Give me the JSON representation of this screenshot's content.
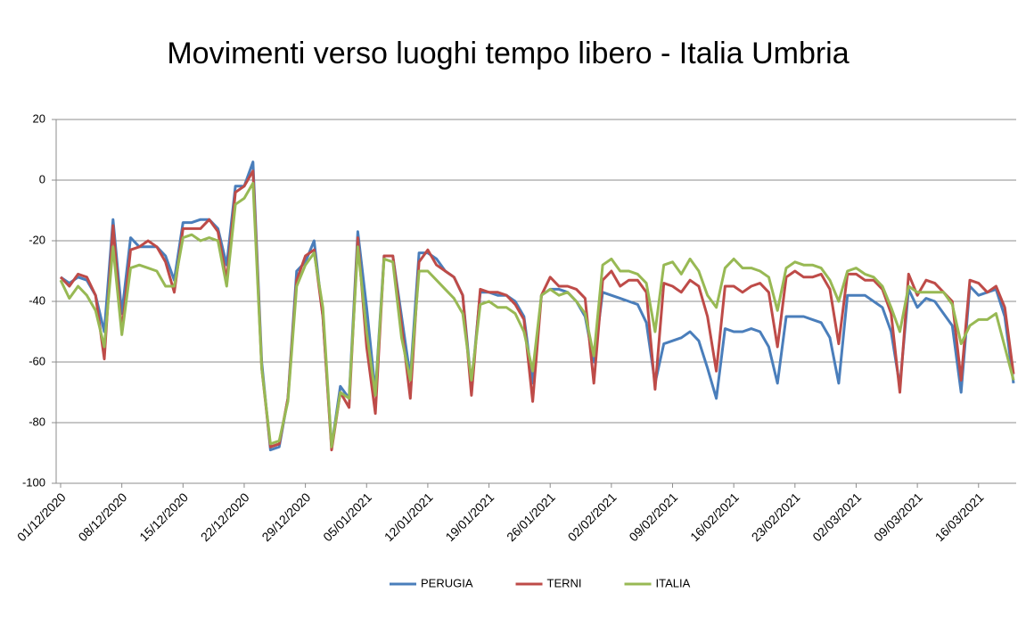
{
  "chart_data": {
    "type": "line",
    "title": "Movimenti verso luoghi tempo libero - Italia Umbria",
    "categories": [
      "01/12/2020",
      null,
      null,
      null,
      null,
      null,
      null,
      "08/12/2020",
      null,
      null,
      null,
      null,
      null,
      null,
      "15/12/2020",
      null,
      null,
      null,
      null,
      null,
      null,
      "22/12/2020",
      null,
      null,
      null,
      null,
      null,
      null,
      "29/12/2020",
      null,
      null,
      null,
      null,
      null,
      null,
      "05/01/2021",
      null,
      null,
      null,
      null,
      null,
      null,
      "12/01/2021",
      null,
      null,
      null,
      null,
      null,
      null,
      "19/01/2021",
      null,
      null,
      null,
      null,
      null,
      null,
      "26/01/2021",
      null,
      null,
      null,
      null,
      null,
      null,
      "02/02/2021",
      null,
      null,
      null,
      null,
      null,
      null,
      "09/02/2021",
      null,
      null,
      null,
      null,
      null,
      null,
      "16/02/2021",
      null,
      null,
      null,
      null,
      null,
      null,
      "23/02/2021",
      null,
      null,
      null,
      null,
      null,
      null,
      "02/03/2021",
      null,
      null,
      null,
      null,
      null,
      null,
      "09/03/2021",
      null,
      null,
      null,
      null,
      null,
      null,
      "16/03/2021",
      null,
      null,
      null,
      null
    ],
    "series": [
      {
        "name": "PERUGIA",
        "color": "#4a7ebb",
        "values": [
          -32,
          -34,
          -32,
          -33,
          -38,
          -50,
          -13,
          -44,
          -19,
          -22,
          -22,
          -22,
          -25,
          -33,
          -14,
          -14,
          -13,
          -13,
          -16,
          -28,
          -2,
          -2,
          6,
          -60,
          -89,
          -88,
          -72,
          -30,
          -27,
          -20,
          -45,
          -88,
          -68,
          -72,
          -17,
          -42,
          -70,
          -25,
          -25,
          -45,
          -65,
          -24,
          -24,
          -26,
          -30,
          -32,
          -38,
          -68,
          -37,
          -37,
          -38,
          -38,
          -40,
          -45,
          -67,
          -38,
          -36,
          -36,
          -37,
          -40,
          -45,
          -60,
          -37,
          -38,
          -39,
          -40,
          -41,
          -47,
          -67,
          -54,
          -53,
          -52,
          -50,
          -53,
          -62,
          -72,
          -49,
          -50,
          -50,
          -49,
          -50,
          -55,
          -67,
          -45,
          -45,
          -45,
          -46,
          -47,
          -52,
          -67,
          -38,
          -38,
          -38,
          -40,
          -42,
          -50,
          -68,
          -36,
          -42,
          -39,
          -40,
          -44,
          -48,
          -70,
          -35,
          -38,
          -37,
          -36,
          -45,
          -67
        ]
      },
      {
        "name": "TERNI",
        "color": "#be4b48",
        "values": [
          -32,
          -35,
          -31,
          -32,
          -38,
          -59,
          -15,
          -50,
          -23,
          -22,
          -20,
          -22,
          -27,
          -37,
          -16,
          -16,
          -16,
          -13,
          -17,
          -33,
          -4,
          -2,
          3,
          -62,
          -88,
          -87,
          -72,
          -33,
          -25,
          -23,
          -45,
          -89,
          -70,
          -75,
          -19,
          -55,
          -77,
          -25,
          -25,
          -48,
          -72,
          -27,
          -23,
          -28,
          -30,
          -32,
          -38,
          -71,
          -36,
          -37,
          -37,
          -38,
          -41,
          -46,
          -73,
          -38,
          -32,
          -35,
          -35,
          -36,
          -39,
          -67,
          -33,
          -30,
          -35,
          -33,
          -33,
          -37,
          -69,
          -34,
          -35,
          -37,
          -33,
          -35,
          -45,
          -63,
          -35,
          -35,
          -37,
          -35,
          -34,
          -37,
          -55,
          -32,
          -30,
          -32,
          -32,
          -31,
          -36,
          -54,
          -31,
          -31,
          -33,
          -33,
          -36,
          -44,
          -70,
          -31,
          -38,
          -33,
          -34,
          -37,
          -40,
          -66,
          -33,
          -34,
          -37,
          -35,
          -42,
          -64
        ]
      },
      {
        "name": "ITALIA",
        "color": "#98b954",
        "values": [
          -33,
          -39,
          -35,
          -38,
          -43,
          -55,
          -22,
          -51,
          -29,
          -28,
          -29,
          -30,
          -35,
          -35,
          -19,
          -18,
          -20,
          -19,
          -20,
          -35,
          -8,
          -6,
          -1,
          -62,
          -87,
          -86,
          -73,
          -35,
          -28,
          -24,
          -42,
          -88,
          -70,
          -72,
          -22,
          -50,
          -71,
          -26,
          -27,
          -52,
          -66,
          -30,
          -30,
          -33,
          -36,
          -39,
          -44,
          -66,
          -41,
          -40,
          -42,
          -42,
          -44,
          -50,
          -63,
          -38,
          -36,
          -38,
          -37,
          -40,
          -44,
          -58,
          -28,
          -26,
          -30,
          -30,
          -31,
          -34,
          -50,
          -28,
          -27,
          -31,
          -26,
          -30,
          -38,
          -42,
          -29,
          -26,
          -29,
          -29,
          -30,
          -32,
          -43,
          -29,
          -27,
          -28,
          -28,
          -29,
          -33,
          -40,
          -30,
          -29,
          -31,
          -32,
          -35,
          -42,
          -50,
          -35,
          -37,
          -37,
          -37,
          -37,
          -41,
          -54,
          -48,
          -46,
          -46,
          -44,
          -55,
          -66
        ]
      }
    ],
    "ylim": [
      -100,
      20
    ],
    "yticks": [
      -100,
      -80,
      -60,
      -40,
      -20,
      0,
      20
    ],
    "grid": true,
    "legend": "bottom"
  }
}
